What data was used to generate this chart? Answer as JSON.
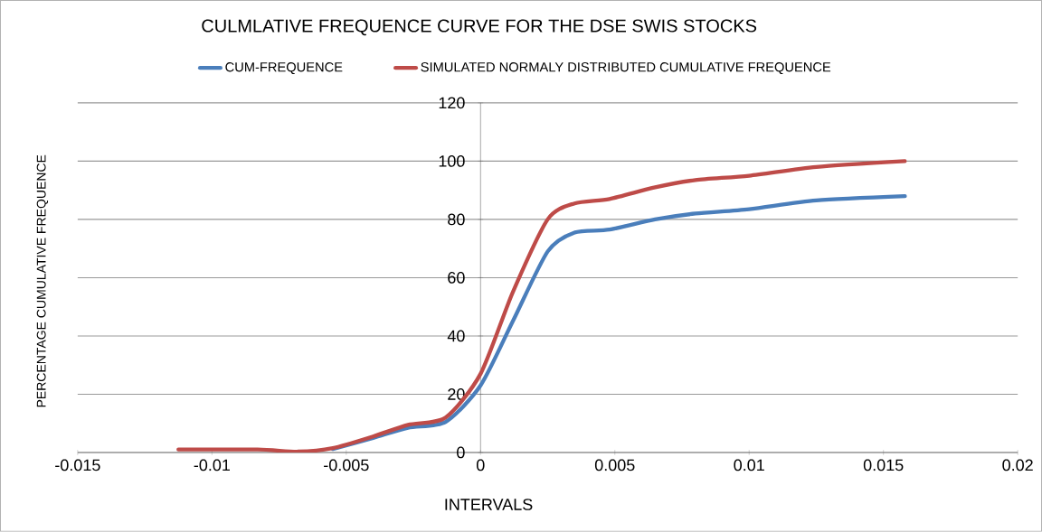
{
  "chart_data": {
    "type": "line",
    "title": "CULMLATIVE FREQUENCE CURVE FOR THE DSE SWIS STOCKS",
    "xlabel": "INTERVALS",
    "ylabel": "PERCENTAGE CUMULATIVE FREQUENCE",
    "x": [
      -0.01125,
      -0.0083,
      -0.0068,
      -0.0055,
      -0.004,
      -0.0027,
      -0.0013,
      0,
      0.0012,
      0.0025,
      0.0035,
      0.0048,
      0.0065,
      0.008,
      0.01,
      0.0125,
      0.0158
    ],
    "series": [
      {
        "name": "CUM-FREQUENCE",
        "color": "#4a7ebb",
        "values": [
          null,
          null,
          null,
          1.2,
          5,
          8.5,
          10.5,
          23,
          45,
          69,
          75.5,
          76.5,
          80,
          82,
          83.5,
          86.5,
          88
        ]
      },
      {
        "name": "SIMULATED NORMALY DISTRIBUTED CUMULATIVE FREQUENCE",
        "color": "#be4b48",
        "values": [
          1,
          1,
          0.3,
          1.5,
          5.5,
          9.5,
          12,
          27,
          55,
          80,
          85.5,
          87,
          91,
          93.5,
          95,
          98,
          100
        ]
      }
    ],
    "xlim": [
      -0.015,
      0.02
    ],
    "ylim": [
      0,
      120
    ],
    "xticks": [
      -0.015,
      -0.01,
      -0.005,
      0,
      0.005,
      0.01,
      0.015,
      0.02
    ],
    "yticks": [
      0,
      20,
      40,
      60,
      80,
      100,
      120
    ],
    "grid": "y",
    "legend": "top"
  }
}
